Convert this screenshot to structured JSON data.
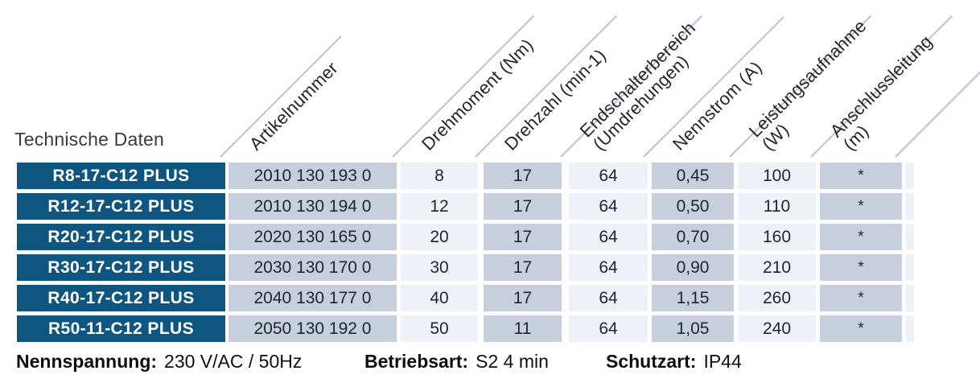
{
  "title": "Technische Daten",
  "columns": [
    {
      "id": "artikelnummer",
      "label": "Artikelnummer"
    },
    {
      "id": "drehmoment",
      "label": "Drehmoment (Nm)"
    },
    {
      "id": "drehzahl",
      "label": "Drehzahl (min-1)"
    },
    {
      "id": "endschalterbereich",
      "label": "Endschalterbereich\n(Umdrehungen)"
    },
    {
      "id": "nennstrom",
      "label": "Nennstrom (A)"
    },
    {
      "id": "leistungsaufnahme",
      "label": "Leistungsaufnahme\n(W)"
    },
    {
      "id": "anschlussleitung",
      "label": "Anschlussleitung\n(m)"
    }
  ],
  "rows": [
    {
      "model": "R8-17-C12 PLUS",
      "artikelnummer": "2010 130 193 0",
      "drehmoment": "8",
      "drehzahl": "17",
      "endschalterbereich": "64",
      "nennstrom": "0,45",
      "leistungsaufnahme": "100",
      "anschlussleitung": "*"
    },
    {
      "model": "R12-17-C12 PLUS",
      "artikelnummer": "2010 130 194 0",
      "drehmoment": "12",
      "drehzahl": "17",
      "endschalterbereich": "64",
      "nennstrom": "0,50",
      "leistungsaufnahme": "110",
      "anschlussleitung": "*"
    },
    {
      "model": "R20-17-C12 PLUS",
      "artikelnummer": "2020 130 165 0",
      "drehmoment": "20",
      "drehzahl": "17",
      "endschalterbereich": "64",
      "nennstrom": "0,70",
      "leistungsaufnahme": "160",
      "anschlussleitung": "*"
    },
    {
      "model": "R30-17-C12 PLUS",
      "artikelnummer": "2030 130 170 0",
      "drehmoment": "30",
      "drehzahl": "17",
      "endschalterbereich": "64",
      "nennstrom": "0,90",
      "leistungsaufnahme": "210",
      "anschlussleitung": "*"
    },
    {
      "model": "R40-17-C12 PLUS",
      "artikelnummer": "2040 130 177 0",
      "drehmoment": "40",
      "drehzahl": "17",
      "endschalterbereich": "64",
      "nennstrom": "1,15",
      "leistungsaufnahme": "260",
      "anschlussleitung": "*"
    },
    {
      "model": "R50-11-C12 PLUS",
      "artikelnummer": "2050 130 192 0",
      "drehmoment": "50",
      "drehzahl": "11",
      "endschalterbereich": "64",
      "nennstrom": "1,05",
      "leistungsaufnahme": "240",
      "anschlussleitung": "*"
    }
  ],
  "footer": {
    "items": [
      {
        "label": "Nennspannung:",
        "value": "230 V/AC / 50Hz"
      },
      {
        "label": "Betriebsart:",
        "value": "S2 4 min"
      },
      {
        "label": "Schutzart:",
        "value": "IP44"
      }
    ]
  },
  "colors": {
    "row_label_bg": "#0e5680",
    "column_shade_dark": "#c7cfdc",
    "column_shade_light": "#eef2f8",
    "diagonal_line": "#b7c2d8"
  }
}
